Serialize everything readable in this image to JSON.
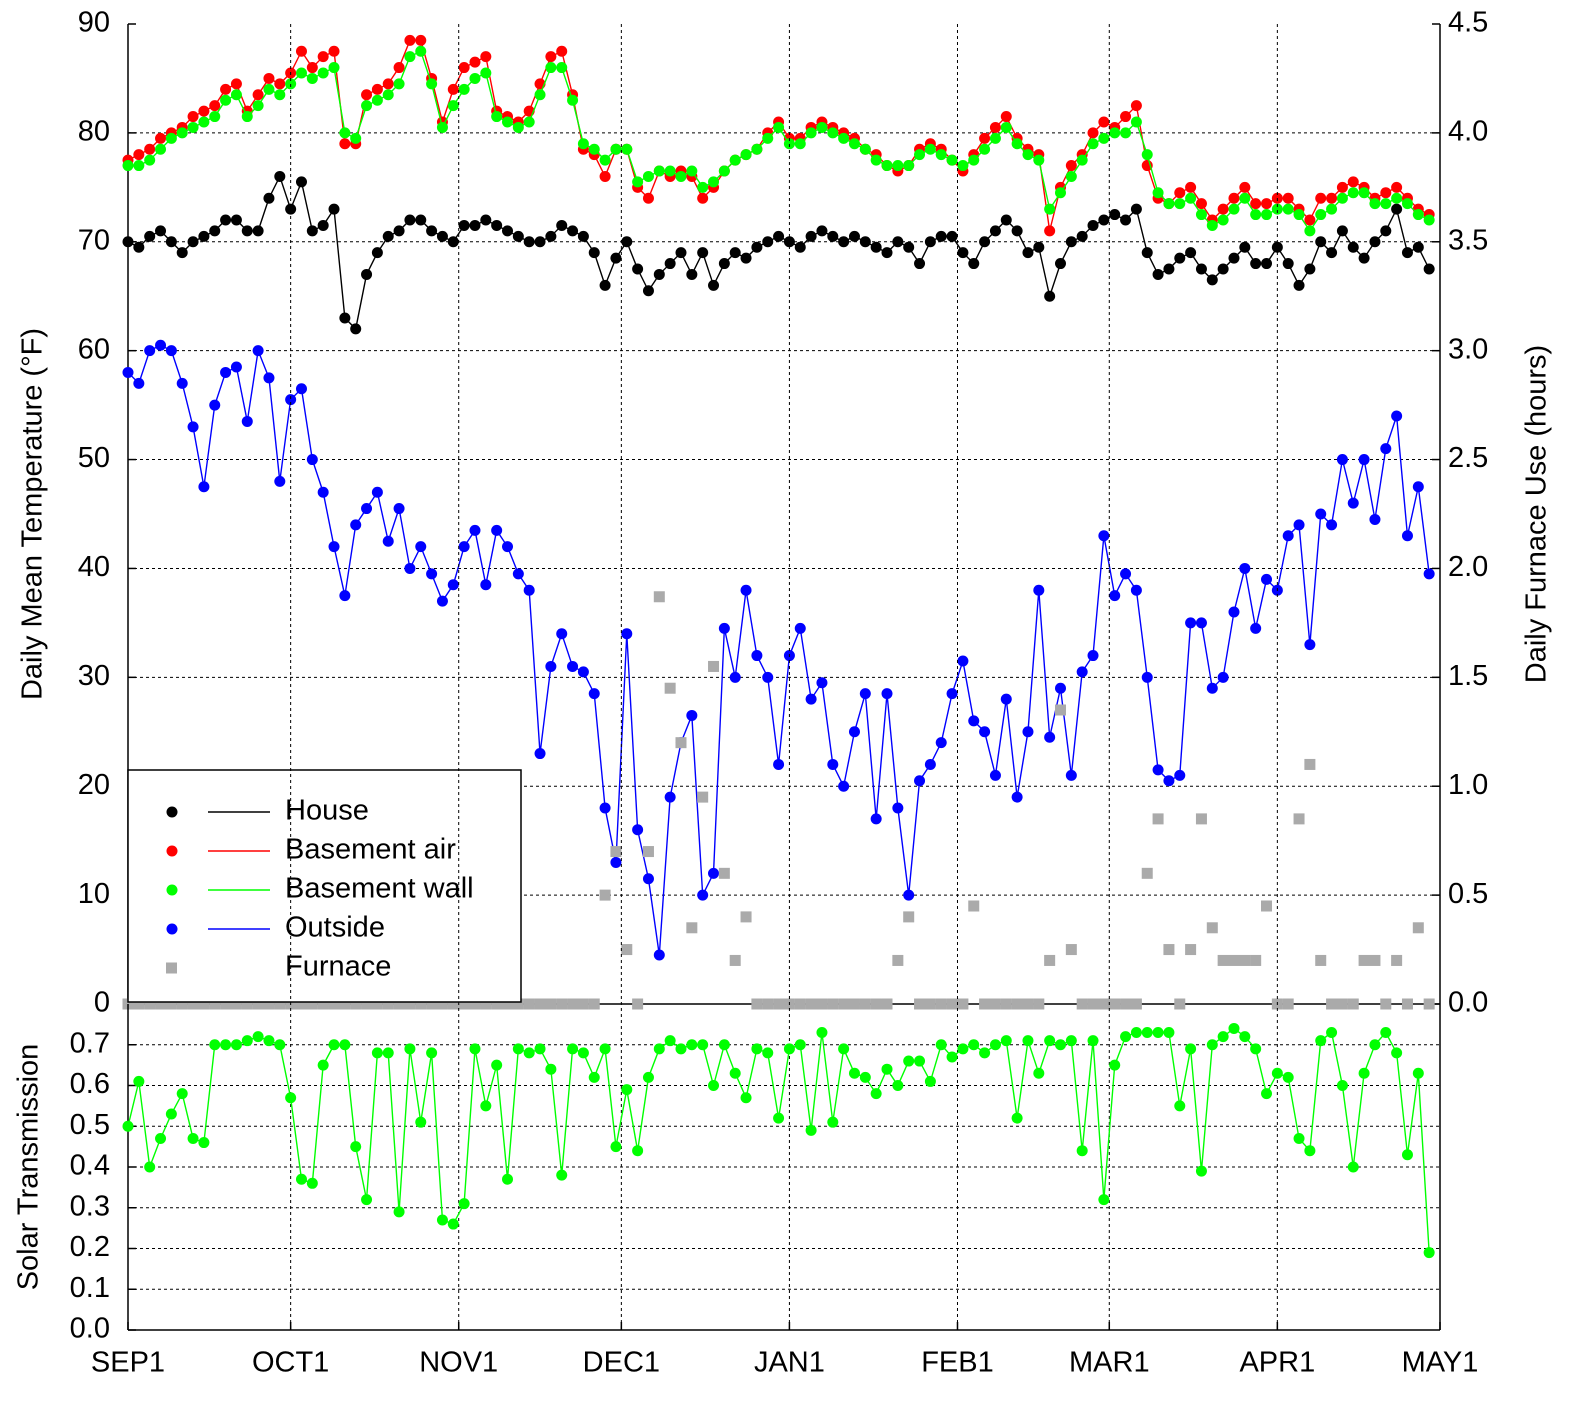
{
  "chart_data": [
    {
      "type": "line",
      "ylabel": "Daily Mean Temperature (°F)",
      "y2label": "Daily Furnace Use (hours)",
      "x": [
        0,
        2,
        4,
        6,
        8,
        10,
        12,
        14,
        16,
        18,
        20,
        22,
        24,
        26,
        28,
        30,
        32,
        34,
        36,
        38,
        40,
        42,
        44,
        46,
        48,
        50,
        52,
        54,
        56,
        58,
        60,
        62,
        64,
        66,
        68,
        70,
        72,
        74,
        76,
        78,
        80,
        82,
        84,
        86,
        88,
        90,
        92,
        94,
        96,
        98,
        100,
        102,
        104,
        106,
        108,
        110,
        112,
        114,
        116,
        118,
        120,
        122,
        124,
        126,
        128,
        130,
        132,
        134,
        136,
        138,
        140,
        142,
        144,
        146,
        148,
        150,
        152,
        154,
        156,
        158,
        160,
        162,
        164,
        166,
        168,
        170,
        172,
        174,
        176,
        178,
        180,
        182,
        184,
        186,
        188,
        190,
        192,
        194,
        196,
        198,
        200,
        202,
        204,
        206,
        208,
        210,
        212,
        214,
        216,
        218,
        220,
        222,
        224,
        226,
        228,
        230,
        232,
        234,
        236,
        238,
        240
      ],
      "xlim": [
        0,
        242
      ],
      "ylim": [
        0,
        90
      ],
      "yticks": [
        0,
        10,
        20,
        30,
        40,
        50,
        60,
        70,
        80,
        90
      ],
      "y2lim": [
        0,
        4.5
      ],
      "y2ticks": [
        {
          "value": 0,
          "label": "0.0"
        },
        0.5,
        {
          "value": 1,
          "label": "1.0"
        },
        1.5,
        {
          "value": 2,
          "label": "2.0"
        },
        2.5,
        {
          "value": 3,
          "label": "3.0"
        },
        3.5,
        {
          "value": 4,
          "label": "4.0"
        },
        4.5
      ],
      "grid": true,
      "legend": "lower left",
      "series": [
        {
          "name": "House",
          "color": "#000000",
          "marker": "circle",
          "line": true,
          "values": [
            70,
            69.5,
            70.5,
            71,
            70,
            69,
            70,
            70.5,
            71,
            72,
            72,
            71,
            71,
            74,
            76,
            73,
            75.5,
            71,
            71.5,
            73,
            63,
            62,
            67,
            69,
            70.5,
            71,
            72,
            72,
            71,
            70.5,
            70,
            71.5,
            71.5,
            72,
            71.5,
            71,
            70.5,
            70,
            70,
            70.5,
            71.5,
            71,
            70.5,
            69,
            66,
            68.5,
            70,
            67.5,
            65.5,
            67,
            68,
            69,
            67,
            69,
            66,
            68,
            69,
            68.5,
            69.5,
            70,
            70.5,
            70,
            69.5,
            70.5,
            71,
            70.5,
            70,
            70.5,
            70,
            69.5,
            69,
            70,
            69.5,
            68,
            70,
            70.5,
            70.5,
            69,
            68,
            70,
            71,
            72,
            71,
            69,
            69.5,
            65,
            68,
            70,
            70.5,
            71.5,
            72,
            72.5,
            72,
            73,
            69,
            67,
            67.5,
            68.5,
            69,
            67.5,
            66.5,
            67.5,
            68.5,
            69.5,
            68,
            68,
            69.5,
            68,
            66,
            67.5,
            70,
            69,
            71,
            69.5,
            68.5,
            70,
            71,
            73,
            69,
            69.5,
            67.5
          ]
        },
        {
          "name": "Basement air",
          "color": "#ff0000",
          "marker": "circle",
          "line": true,
          "values": [
            77.5,
            78,
            78.5,
            79.5,
            80,
            80.5,
            81.5,
            82,
            82.5,
            84,
            84.5,
            82,
            83.5,
            85,
            84.5,
            85.5,
            87.5,
            86,
            87,
            87.5,
            79,
            79,
            83.5,
            84,
            84.5,
            86,
            88.5,
            88.5,
            85,
            81,
            84,
            86,
            86.5,
            87,
            82,
            81.5,
            81,
            82,
            84.5,
            87,
            87.5,
            83.5,
            78.5,
            78,
            76,
            78.5,
            78.5,
            75,
            74,
            76.5,
            76,
            76.5,
            76,
            74,
            75,
            76.5,
            77.5,
            78,
            78.5,
            80,
            81,
            79.5,
            79.5,
            80.5,
            81,
            80.5,
            80,
            79.5,
            78.5,
            78,
            77,
            76.5,
            77,
            78.5,
            79,
            78.5,
            77.5,
            76.5,
            78,
            79.5,
            80.5,
            81.5,
            79.5,
            78.5,
            78,
            71,
            75,
            77,
            78,
            80,
            81,
            80.5,
            81.5,
            82.5,
            77,
            74,
            73.5,
            74.5,
            75,
            73.5,
            72,
            73,
            74,
            75,
            73.5,
            73.5,
            74,
            74,
            73,
            72,
            74,
            74,
            75,
            75.5,
            75,
            74,
            74.5,
            75,
            74,
            73,
            72.5
          ]
        },
        {
          "name": "Basement wall",
          "color": "#00ff00",
          "marker": "circle",
          "line": true,
          "values": [
            77,
            77,
            77.5,
            78.5,
            79.5,
            80,
            80.5,
            81,
            81.5,
            83,
            83.5,
            81.5,
            82.5,
            84,
            83.5,
            84.5,
            85.5,
            85,
            85.5,
            86,
            80,
            79.5,
            82.5,
            83,
            83.5,
            84.5,
            87,
            87.5,
            84.5,
            80.5,
            82.5,
            84,
            85,
            85.5,
            81.5,
            81,
            80.5,
            81,
            83.5,
            86,
            86,
            83,
            79,
            78.5,
            77.5,
            78.5,
            78.5,
            75.5,
            76,
            76.5,
            76.5,
            76,
            76.5,
            75,
            75.5,
            76.5,
            77.5,
            78,
            78.5,
            79.5,
            80.5,
            79,
            79,
            80,
            80.5,
            80,
            79.5,
            79,
            78.5,
            77.5,
            77,
            77,
            77,
            78,
            78.5,
            78,
            77.5,
            77,
            77.5,
            78.5,
            79.5,
            80.5,
            79,
            78,
            77.5,
            73,
            74.5,
            76,
            77.5,
            79,
            79.5,
            80,
            80,
            81,
            78,
            74.5,
            73.5,
            73.5,
            74,
            72.5,
            71.5,
            72,
            73,
            74,
            72.5,
            72.5,
            73,
            73,
            72.5,
            71,
            72.5,
            73,
            74,
            74.5,
            74.5,
            73.5,
            73.5,
            74,
            73.5,
            72.5,
            72
          ]
        },
        {
          "name": "Outside",
          "color": "#0000ff",
          "marker": "circle",
          "line": true,
          "values": [
            58,
            57,
            60,
            60.5,
            60,
            57,
            53,
            47.5,
            55,
            58,
            58.5,
            53.5,
            60,
            57.5,
            48,
            55.5,
            56.5,
            50,
            47,
            42,
            37.5,
            44,
            45.5,
            47,
            42.5,
            45.5,
            40,
            42,
            39.5,
            37,
            38.5,
            42,
            43.5,
            38.5,
            43.5,
            42,
            39.5,
            38,
            23,
            31,
            34,
            31,
            30.5,
            28.5,
            18,
            13,
            34,
            16,
            11.5,
            4.5,
            19,
            24,
            26.5,
            10,
            12,
            34.5,
            30,
            38,
            32,
            30,
            22,
            32,
            34.5,
            28,
            29.5,
            22,
            20,
            25,
            28.5,
            17,
            28.5,
            18,
            10,
            20.5,
            22,
            24,
            28.5,
            31.5,
            26,
            25,
            21,
            28,
            19,
            25,
            38,
            24.5,
            29,
            21,
            30.5,
            32,
            43,
            37.5,
            39.5,
            38,
            30,
            21.5,
            20.5,
            21,
            35,
            35,
            29,
            30,
            36,
            40,
            34.5,
            39,
            38,
            43,
            44,
            33,
            45,
            44,
            50,
            46,
            50,
            44.5,
            51,
            54,
            43,
            47.5,
            39.5
          ]
        },
        {
          "name": "Furnace",
          "color": "#aaaaaa",
          "marker": "square",
          "line": false,
          "axis": "y2",
          "values": [
            0,
            0,
            0,
            0,
            0,
            0,
            0,
            0,
            0,
            0,
            0,
            0,
            0,
            0,
            0,
            0,
            0,
            0,
            0,
            0,
            0,
            0,
            0,
            0,
            0,
            0,
            0,
            0,
            0,
            0,
            0,
            0,
            0,
            0,
            0,
            0,
            0,
            0,
            0,
            0,
            0,
            0,
            0,
            0,
            0.5,
            0.7,
            0.25,
            0,
            0.7,
            1.87,
            1.45,
            1.2,
            0.35,
            0.95,
            1.55,
            0.6,
            0.2,
            0.4,
            0,
            0,
            0,
            0,
            0,
            0,
            0,
            0,
            0,
            0,
            0,
            0,
            0,
            0.2,
            0.4,
            0,
            0,
            0,
            0,
            0,
            0.45,
            0,
            0,
            0,
            0,
            0,
            0,
            0.2,
            1.35,
            0.25,
            0,
            0,
            0,
            0,
            0,
            0,
            0.6,
            0.85,
            0.25,
            0,
            0.25,
            0.85,
            0.35,
            0.2,
            0.2,
            0.2,
            0.2,
            0.45,
            0,
            0,
            0.85,
            1.1,
            0.2,
            0,
            0,
            0,
            0.2,
            0.2,
            0,
            0.2,
            0,
            0.35,
            0
          ]
        }
      ]
    },
    {
      "type": "line",
      "ylabel": "Solar Transmission",
      "x": [
        0,
        2,
        4,
        6,
        8,
        10,
        12,
        14,
        16,
        18,
        20,
        22,
        24,
        26,
        28,
        30,
        32,
        34,
        36,
        38,
        40,
        42,
        44,
        46,
        48,
        50,
        52,
        54,
        56,
        58,
        60,
        62,
        64,
        66,
        68,
        70,
        72,
        74,
        76,
        78,
        80,
        82,
        84,
        86,
        88,
        90,
        92,
        94,
        96,
        98,
        100,
        102,
        104,
        106,
        108,
        110,
        112,
        114,
        116,
        118,
        120,
        122,
        124,
        126,
        128,
        130,
        132,
        134,
        136,
        138,
        140,
        142,
        144,
        146,
        148,
        150,
        152,
        154,
        156,
        158,
        160,
        162,
        164,
        166,
        168,
        170,
        172,
        174,
        176,
        178,
        180,
        182,
        184,
        186,
        188,
        190,
        192,
        194,
        196,
        198,
        200,
        202,
        204,
        206,
        208,
        210,
        212,
        214,
        216,
        218,
        220,
        222,
        224,
        226,
        228,
        230,
        232,
        234,
        236,
        238,
        240
      ],
      "color": "#00ff00",
      "values": [
        0.5,
        0.61,
        0.4,
        0.47,
        0.53,
        0.58,
        0.47,
        0.46,
        0.7,
        0.7,
        0.7,
        0.71,
        0.72,
        0.71,
        0.7,
        0.57,
        0.37,
        0.36,
        0.65,
        0.7,
        0.7,
        0.45,
        0.32,
        0.68,
        0.68,
        0.29,
        0.69,
        0.51,
        0.68,
        0.27,
        0.26,
        0.31,
        0.69,
        0.55,
        0.65,
        0.37,
        0.69,
        0.68,
        0.69,
        0.64,
        0.38,
        0.69,
        0.68,
        0.62,
        0.69,
        0.45,
        0.59,
        0.44,
        0.62,
        0.69,
        0.71,
        0.69,
        0.7,
        0.7,
        0.6,
        0.7,
        0.63,
        0.57,
        0.69,
        0.68,
        0.52,
        0.69,
        0.7,
        0.49,
        0.73,
        0.51,
        0.69,
        0.63,
        0.62,
        0.58,
        0.64,
        0.6,
        0.66,
        0.66,
        0.61,
        0.7,
        0.67,
        0.69,
        0.7,
        0.68,
        0.7,
        0.71,
        0.52,
        0.71,
        0.63,
        0.71,
        0.7,
        0.71,
        0.44,
        0.71,
        0.32,
        0.65,
        0.72,
        0.73,
        0.73,
        0.73,
        0.73,
        0.55,
        0.69,
        0.39,
        0.7,
        0.72,
        0.74,
        0.72,
        0.69,
        0.58,
        0.63,
        0.62,
        0.47,
        0.44,
        0.71,
        0.73,
        0.6,
        0.4,
        0.63,
        0.7,
        0.73,
        0.68,
        0.43,
        0.63,
        0.19
      ],
      "xlim": [
        0,
        242
      ],
      "xticks": [
        {
          "value": 0,
          "label": "SEP1"
        },
        {
          "value": 30,
          "label": "OCT1"
        },
        {
          "value": 61,
          "label": "NOV1"
        },
        {
          "value": 91,
          "label": "DEC1"
        },
        {
          "value": 122,
          "label": "JAN1"
        },
        {
          "value": 153,
          "label": "FEB1"
        },
        {
          "value": 181,
          "label": "MAR1"
        },
        {
          "value": 212,
          "label": "APR1"
        },
        {
          "value": 242,
          "label": "MAY1"
        }
      ],
      "ylim": [
        0,
        0.8
      ],
      "yticks": [
        {
          "value": 0,
          "label": "0.0"
        },
        0.1,
        0.2,
        0.3,
        0.4,
        0.5,
        0.6,
        0.7
      ],
      "grid": true
    }
  ]
}
